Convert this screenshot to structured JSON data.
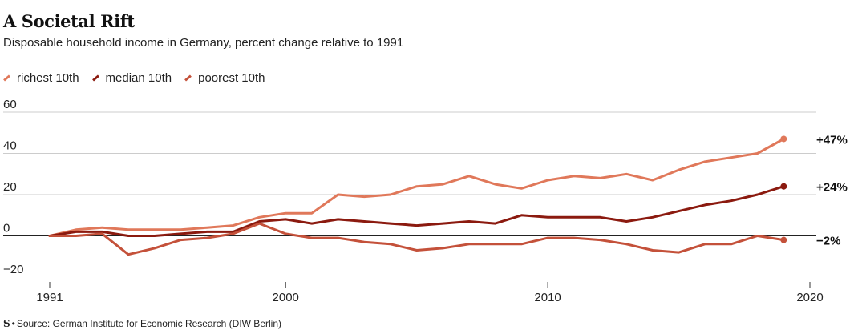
{
  "title": "A Societal Rift",
  "subtitle": "Disposable household income in Germany, percent change relative to 1991",
  "source": "Source: German Institute for Economic Research (DIW Berlin)",
  "source_logo": "S",
  "colors": {
    "richest": "#e0785a",
    "median": "#8b1a0f",
    "poorest": "#c4513a",
    "grid": "#cccccc",
    "zero": "#222222"
  },
  "chart_data": {
    "type": "line",
    "title": "A Societal Rift",
    "xlabel": "",
    "ylabel": "",
    "xlim": [
      1991,
      2020
    ],
    "ylim": [
      -20,
      60
    ],
    "y_ticks": [
      60,
      40,
      20,
      0,
      -20
    ],
    "y_tick_labels": [
      "60",
      "40",
      "20",
      "0",
      "−20"
    ],
    "x_ticks": [
      1991,
      2000,
      2010,
      2020
    ],
    "x_tick_labels": [
      "1991",
      "2000",
      "2010",
      "2020"
    ],
    "x": [
      1991,
      1992,
      1993,
      1994,
      1995,
      1996,
      1997,
      1998,
      1999,
      2000,
      2001,
      2002,
      2003,
      2004,
      2005,
      2006,
      2007,
      2008,
      2009,
      2010,
      2011,
      2012,
      2013,
      2014,
      2015,
      2016,
      2017,
      2018,
      2019
    ],
    "series": [
      {
        "name": "richest 10th",
        "key": "richest",
        "end_label": "+47%",
        "values": [
          0,
          3,
          4,
          3,
          3,
          3,
          4,
          5,
          9,
          11,
          11,
          20,
          19,
          20,
          24,
          25,
          29,
          25,
          23,
          27,
          29,
          28,
          30,
          27,
          32,
          36,
          38,
          40,
          47
        ]
      },
      {
        "name": "median 10th",
        "key": "median",
        "end_label": "+24%",
        "values": [
          0,
          2,
          2,
          0,
          0,
          1,
          2,
          2,
          7,
          8,
          6,
          8,
          7,
          6,
          5,
          6,
          7,
          6,
          10,
          9,
          9,
          9,
          7,
          9,
          12,
          15,
          17,
          20,
          24
        ]
      },
      {
        "name": "poorest 10th",
        "key": "poorest",
        "end_label": "−2%",
        "values": [
          0,
          0,
          1,
          -9,
          -6,
          -2,
          -1,
          1,
          6,
          1,
          -1,
          -1,
          -3,
          -4,
          -7,
          -6,
          -4,
          -4,
          -4,
          -1,
          -1,
          -2,
          -4,
          -7,
          -8,
          -4,
          -4,
          0,
          -2
        ]
      }
    ]
  }
}
